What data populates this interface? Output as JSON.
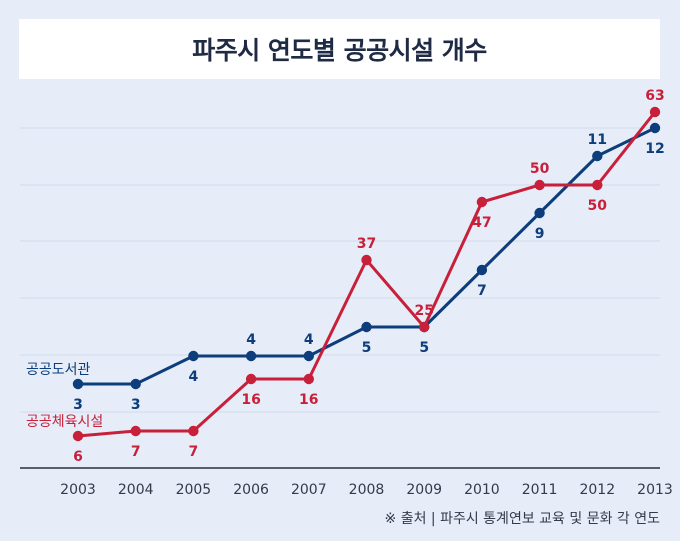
{
  "title": "파주시 연도별 공공시설 개수",
  "source": "※ 출처 | 파주시 통계연보 교육 및 문화 각 연도",
  "chart_data": {
    "type": "line",
    "title": "파주시 연도별 공공시설 개수",
    "xlabel": "",
    "ylabel": "",
    "x": [
      "2003",
      "2004",
      "2005",
      "2006",
      "2007",
      "2008",
      "2009",
      "2010",
      "2011",
      "2012",
      "2013"
    ],
    "grid": true,
    "legend": "inline-left",
    "series": [
      {
        "name": "공공도서관",
        "color": "#0d3d7a",
        "values": [
          3,
          3,
          4,
          4,
          4,
          5,
          5,
          7,
          9,
          11,
          12
        ],
        "labels": [
          "3",
          "3",
          "4",
          "4",
          "4",
          "5",
          "5",
          "7",
          "9",
          "11",
          "12"
        ]
      },
      {
        "name": "공공체육시설",
        "color": "#c8203a",
        "values": [
          6,
          7,
          7,
          16,
          16,
          37,
          25,
          47,
          50,
          50,
          63
        ],
        "labels": [
          "6",
          "7",
          "7",
          "16",
          "16",
          "37",
          "25",
          "47",
          "50",
          "50",
          "63"
        ]
      }
    ]
  }
}
